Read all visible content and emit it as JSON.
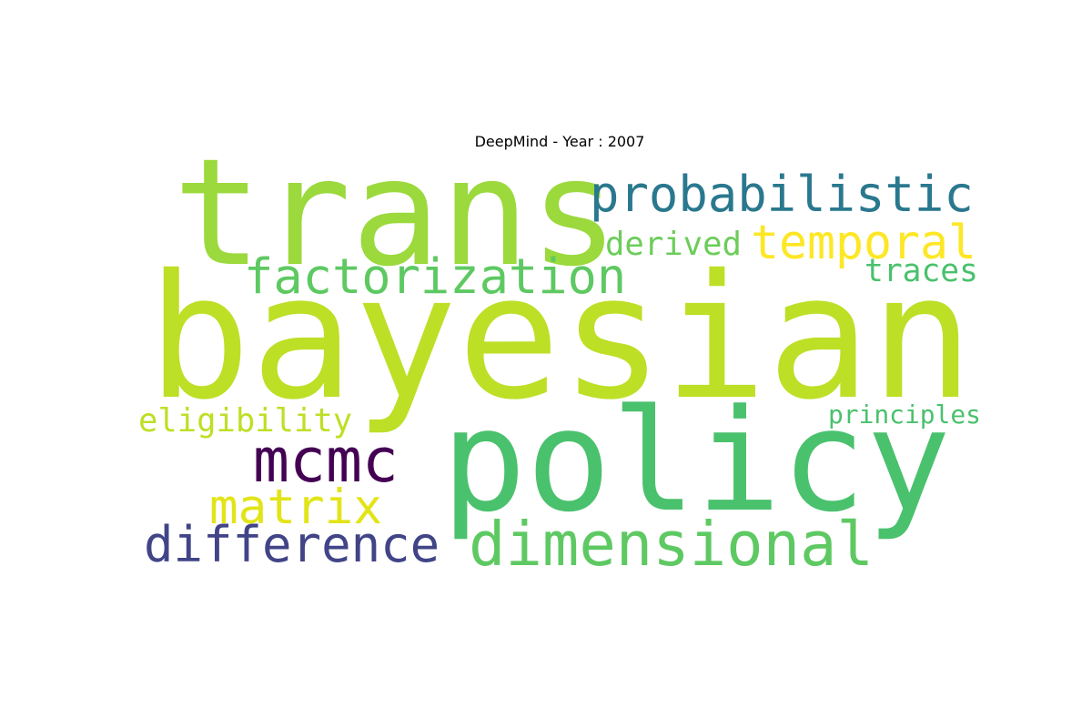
{
  "title": "DeepMind - Year : 2007",
  "words": [
    {
      "text": "bayesian",
      "color": "#bddf26"
    },
    {
      "text": "policy",
      "color": "#4ac16d"
    },
    {
      "text": "trans",
      "color": "#9bd93c"
    },
    {
      "text": "probabilistic",
      "color": "#2a788e"
    },
    {
      "text": "temporal",
      "color": "#fde725"
    },
    {
      "text": "factorization",
      "color": "#5ec962"
    },
    {
      "text": "derived",
      "color": "#6ccd5a"
    },
    {
      "text": "traces",
      "color": "#4ac16d"
    },
    {
      "text": "dimensional",
      "color": "#5ec962"
    },
    {
      "text": "difference",
      "color": "#414487"
    },
    {
      "text": "mcmc",
      "color": "#440154"
    },
    {
      "text": "matrix",
      "color": "#e2e418"
    },
    {
      "text": "eligibility",
      "color": "#bddf26"
    },
    {
      "text": "principles",
      "color": "#4ac16d"
    }
  ]
}
